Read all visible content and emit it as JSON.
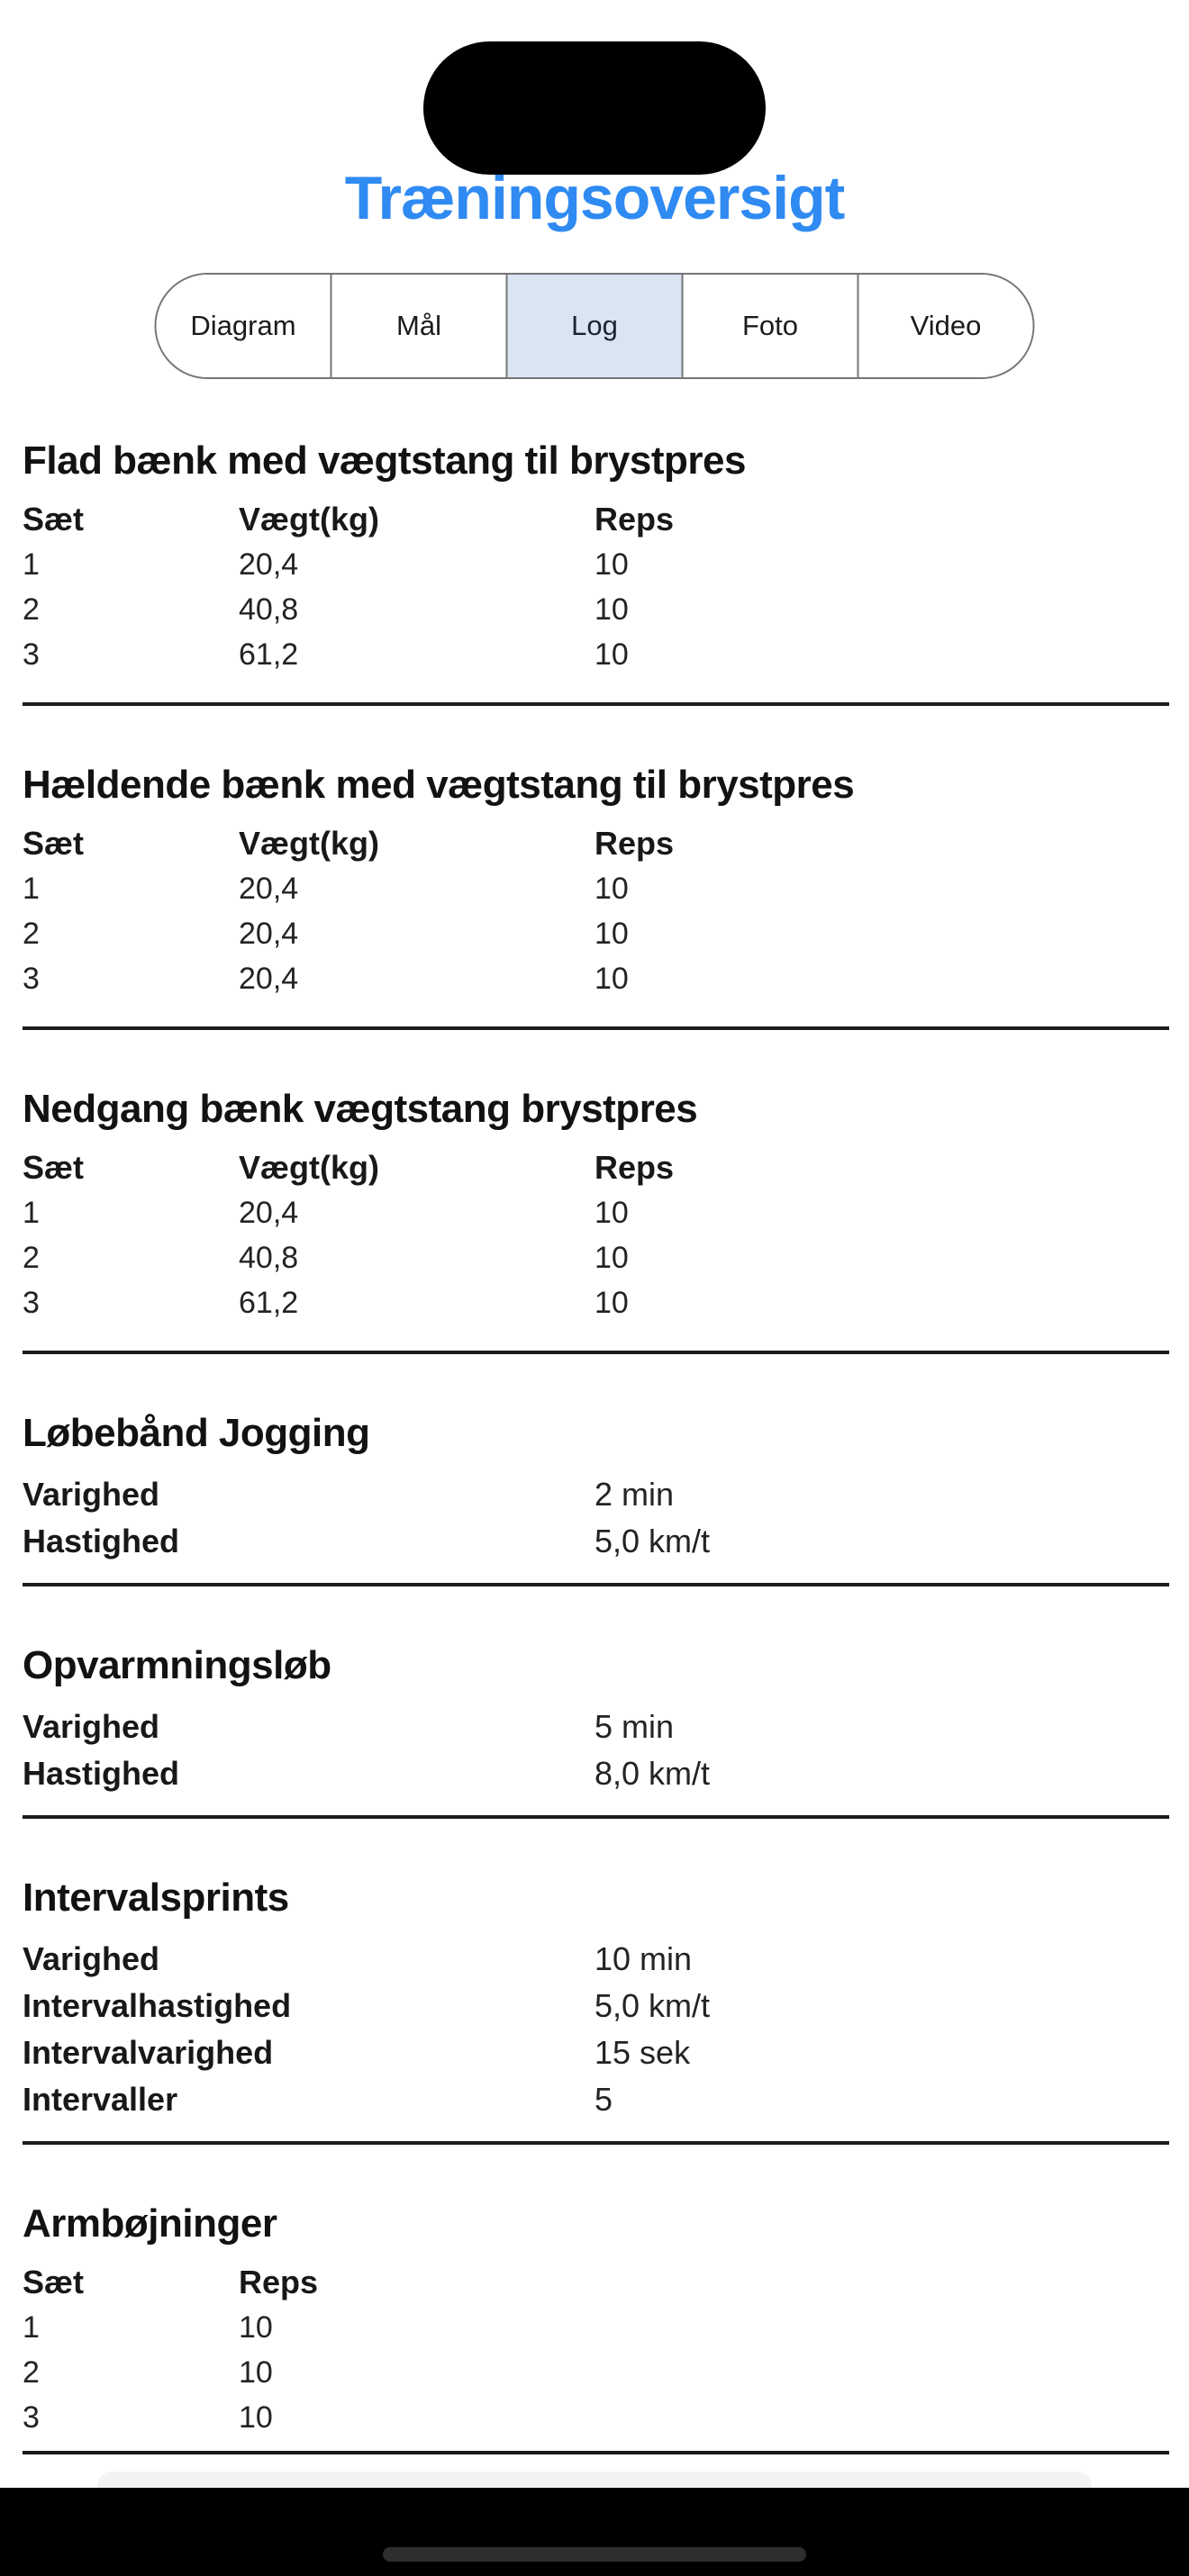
{
  "header": {
    "title": "Træningsoversigt"
  },
  "tabs": {
    "items": [
      {
        "label": "Diagram",
        "active": false
      },
      {
        "label": "Mål",
        "active": false
      },
      {
        "label": "Log",
        "active": true
      },
      {
        "label": "Foto",
        "active": false
      },
      {
        "label": "Video",
        "active": false
      }
    ]
  },
  "sections": [
    {
      "type": "sets",
      "title": "Flad bænk med vægtstang til brystpres",
      "columns": [
        "Sæt",
        "Vægt(kg)",
        "Reps"
      ],
      "rows": [
        [
          "1",
          "20,4",
          "10"
        ],
        [
          "2",
          "40,8",
          "10"
        ],
        [
          "3",
          "61,2",
          "10"
        ]
      ]
    },
    {
      "type": "sets",
      "title": "Hældende bænk med vægtstang til brystpres",
      "columns": [
        "Sæt",
        "Vægt(kg)",
        "Reps"
      ],
      "rows": [
        [
          "1",
          "20,4",
          "10"
        ],
        [
          "2",
          "20,4",
          "10"
        ],
        [
          "3",
          "20,4",
          "10"
        ]
      ]
    },
    {
      "type": "sets",
      "title": "Nedgang bænk vægtstang brystpres",
      "columns": [
        "Sæt",
        "Vægt(kg)",
        "Reps"
      ],
      "rows": [
        [
          "1",
          "20,4",
          "10"
        ],
        [
          "2",
          "40,8",
          "10"
        ],
        [
          "3",
          "61,2",
          "10"
        ]
      ]
    },
    {
      "type": "params",
      "title": "Løbebånd Jogging",
      "rows": [
        [
          "Varighed",
          "2 min"
        ],
        [
          "Hastighed",
          "5,0 km/t"
        ]
      ]
    },
    {
      "type": "params",
      "title": "Opvarmningsløb",
      "rows": [
        [
          "Varighed",
          "5 min"
        ],
        [
          "Hastighed",
          "8,0 km/t"
        ]
      ]
    },
    {
      "type": "params",
      "title": "Intervalsprints",
      "rows": [
        [
          "Varighed",
          "10 min"
        ],
        [
          "Intervalhastighed",
          "5,0 km/t"
        ],
        [
          "Intervalvarighed",
          "15 sek"
        ],
        [
          "Intervaller",
          "5"
        ]
      ]
    },
    {
      "type": "sets",
      "title": "Armbøjninger",
      "columns": [
        "Sæt",
        "Reps"
      ],
      "rows": [
        [
          "1",
          "10"
        ],
        [
          "2",
          "10"
        ],
        [
          "3",
          "10"
        ]
      ]
    }
  ],
  "colors": {
    "title_text": "#2F8AF2",
    "tab_active_bg": "#DAE4F3",
    "divider": "#1C1C1C"
  }
}
